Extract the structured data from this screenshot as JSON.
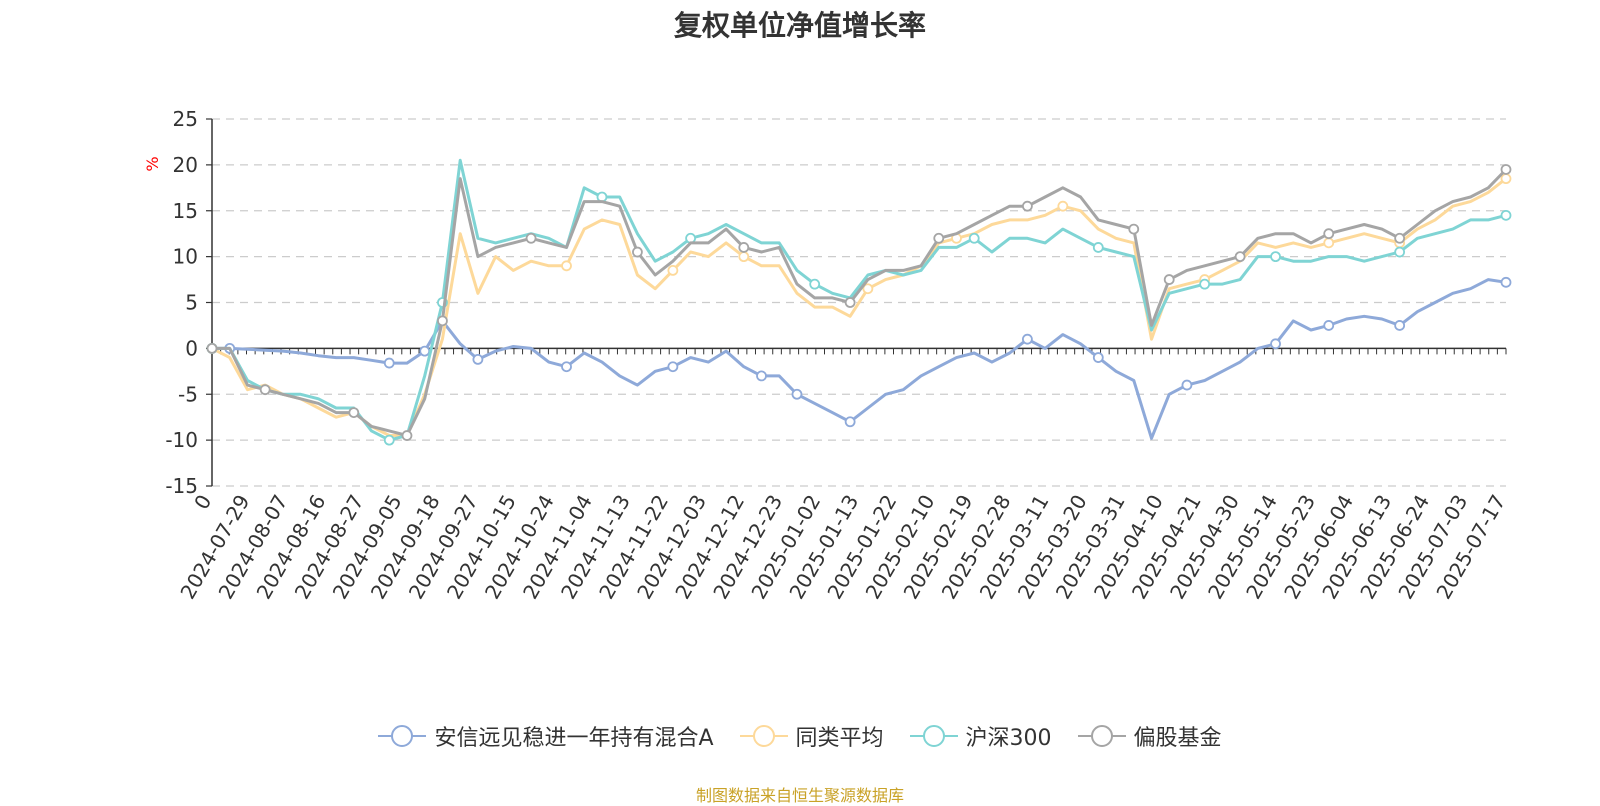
{
  "title": "复权单位净值增长率",
  "source": "制图数据来自恒生聚源数据库",
  "colors": {
    "安信远见稳进一年持有混合A": "#8ea9d9",
    "同类平均": "#fdd99a",
    "沪深300": "#7fd4d4",
    "偏股基金": "#a5a5a5",
    "unit": "#ff0000"
  },
  "chart_data": {
    "type": "line",
    "title": "复权单位净值增长率",
    "ylabel": "%",
    "ylim": [
      -15,
      25
    ],
    "yticks": [
      -15,
      -10,
      -5,
      0,
      5,
      10,
      15,
      20,
      25
    ],
    "grid": true,
    "legend_position": "bottom",
    "x_tick_labels": [
      "0",
      "2024-07-29",
      "2024-08-07",
      "2024-08-16",
      "2024-08-27",
      "2024-09-05",
      "2024-09-18",
      "2024-09-27",
      "2024-10-15",
      "2024-10-24",
      "2024-11-04",
      "2024-11-13",
      "2024-11-22",
      "2024-12-03",
      "2024-12-12",
      "2024-12-23",
      "2025-01-02",
      "2025-01-13",
      "2025-01-22",
      "2025-02-10",
      "2025-02-19",
      "2025-02-28",
      "2025-03-11",
      "2025-03-20",
      "2025-03-31",
      "2025-04-10",
      "2025-04-21",
      "2025-04-30",
      "2025-05-14",
      "2025-05-23",
      "2025-06-04",
      "2025-06-13",
      "2025-06-24",
      "2025-07-03",
      "2025-07-17"
    ],
    "series": [
      {
        "name": "安信远见稳进一年持有混合A",
        "values": [
          0,
          0,
          -0.1,
          -0.2,
          -0.3,
          -0.5,
          -0.8,
          -1.0,
          -1.0,
          -1.3,
          -1.6,
          -1.6,
          -0.3,
          3.0,
          0.5,
          -1.2,
          -0.3,
          0.2,
          0.0,
          -1.5,
          -2.0,
          -0.5,
          -1.5,
          -3.0,
          -4.0,
          -2.5,
          -2.0,
          -1.0,
          -1.5,
          -0.3,
          -2.0,
          -3.0,
          -3.0,
          -5.0,
          -6.0,
          -7.0,
          -8.0,
          -6.5,
          -5.0,
          -4.5,
          -3.0,
          -2.0,
          -1.0,
          -0.5,
          -1.5,
          -0.5,
          1.0,
          0.0,
          1.5,
          0.5,
          -1.0,
          -2.5,
          -3.5,
          -9.8,
          -5.0,
          -4.0,
          -3.5,
          -2.5,
          -1.5,
          0.0,
          0.5,
          3.0,
          2.0,
          2.5,
          3.2,
          3.5,
          3.2,
          2.5,
          4.0,
          5.0,
          6.0,
          6.5,
          7.5,
          7.2
        ],
        "markers": [
          0,
          1,
          10,
          12,
          15,
          20,
          26,
          31,
          33,
          36,
          46,
          50,
          55,
          60,
          63,
          67,
          73
        ]
      },
      {
        "name": "同类平均",
        "values": [
          0,
          -1,
          -4.5,
          -4.0,
          -5.0,
          -5.5,
          -6.5,
          -7.5,
          -7.0,
          -8.5,
          -9.5,
          -9.5,
          -5.0,
          1.0,
          12.5,
          6.0,
          10.0,
          8.5,
          9.5,
          9.0,
          9.0,
          13.0,
          14.0,
          13.5,
          8.0,
          6.5,
          8.5,
          10.5,
          10.0,
          11.5,
          10.0,
          9.0,
          9.0,
          6.0,
          4.5,
          4.5,
          3.5,
          6.5,
          7.5,
          8.0,
          9.0,
          11.5,
          12.0,
          12.5,
          13.5,
          14.0,
          14.0,
          14.5,
          15.5,
          15.0,
          13.0,
          12.0,
          11.5,
          1.0,
          6.5,
          7.0,
          7.5,
          8.5,
          9.5,
          11.5,
          11.0,
          11.5,
          11.0,
          11.5,
          12.0,
          12.5,
          12.0,
          11.5,
          13.0,
          14.0,
          15.5,
          16.0,
          17.0,
          18.5
        ],
        "markers": [
          0,
          20,
          26,
          30,
          37,
          42,
          48,
          56,
          63,
          67,
          73
        ]
      },
      {
        "name": "沪深300",
        "values": [
          0,
          0,
          -3.5,
          -4.5,
          -5.0,
          -5.0,
          -5.5,
          -6.5,
          -6.5,
          -9.0,
          -10.0,
          -9.5,
          -3.0,
          5.0,
          20.5,
          12.0,
          11.5,
          12.0,
          12.5,
          12.0,
          11.0,
          17.5,
          16.5,
          16.5,
          12.5,
          9.5,
          10.5,
          12.0,
          12.5,
          13.5,
          12.5,
          11.5,
          11.5,
          8.5,
          7.0,
          6.0,
          5.5,
          8.0,
          8.5,
          8.0,
          8.5,
          11.0,
          11.0,
          12.0,
          10.5,
          12.0,
          12.0,
          11.5,
          13.0,
          12.0,
          11.0,
          10.5,
          10.0,
          2.0,
          6.0,
          6.5,
          7.0,
          7.0,
          7.5,
          10.0,
          10.0,
          9.5,
          9.5,
          10.0,
          10.0,
          9.5,
          10.0,
          10.5,
          12.0,
          12.5,
          13.0,
          14.0,
          14.0,
          14.5
        ],
        "markers": [
          0,
          10,
          13,
          22,
          27,
          34,
          43,
          50,
          56,
          60,
          67,
          73
        ]
      },
      {
        "name": "偏股基金",
        "values": [
          0,
          0,
          -4.0,
          -4.5,
          -5.0,
          -5.5,
          -6.0,
          -7.0,
          -7.0,
          -8.5,
          -9.0,
          -9.5,
          -5.5,
          3.0,
          18.5,
          10.0,
          11.0,
          11.5,
          12.0,
          11.5,
          11.0,
          16.0,
          16.0,
          15.5,
          10.5,
          8.0,
          9.5,
          11.5,
          11.5,
          13.0,
          11.0,
          10.5,
          11.0,
          7.0,
          5.5,
          5.5,
          5.0,
          7.5,
          8.5,
          8.5,
          9.0,
          12.0,
          12.5,
          13.5,
          14.5,
          15.5,
          15.5,
          16.5,
          17.5,
          16.5,
          14.0,
          13.5,
          13.0,
          2.5,
          7.5,
          8.5,
          9.0,
          9.5,
          10.0,
          12.0,
          12.5,
          12.5,
          11.5,
          12.5,
          13.0,
          13.5,
          13.0,
          12.0,
          13.5,
          15.0,
          16.0,
          16.5,
          17.5,
          19.5
        ],
        "markers": [
          0,
          3,
          8,
          11,
          13,
          18,
          24,
          30,
          36,
          41,
          46,
          52,
          54,
          58,
          63,
          67,
          73
        ]
      }
    ]
  }
}
